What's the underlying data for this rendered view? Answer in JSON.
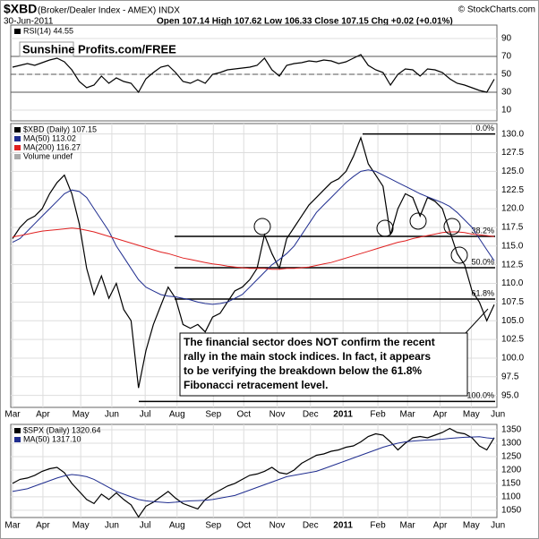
{
  "header": {
    "symbol": "$XBD",
    "title": "(Broker/Dealer Index - AMEX) INDX",
    "date": "30-Jun-2011",
    "quote": "Open 107.14 High 107.62 Low 106.33 Close 107.15 Chg +0.02 (+0.01%)",
    "source": "© StockCharts.com"
  },
  "chart_data": [
    {
      "type": "line",
      "watermark": [
        "Sunshine",
        "Profits.com/FREE"
      ],
      "x": [
        0,
        1,
        2,
        3,
        4,
        5,
        6,
        7,
        8,
        9,
        10,
        11,
        12,
        13,
        14,
        15,
        16,
        17,
        18,
        19,
        20,
        21,
        22,
        23,
        24,
        25,
        26,
        27,
        28,
        29,
        30,
        31,
        32,
        33,
        34,
        35,
        36,
        37,
        38,
        39,
        40,
        41,
        42,
        43,
        44,
        45,
        46,
        47,
        48,
        49,
        50,
        51,
        52,
        53,
        54,
        55,
        56,
        57,
        58,
        59,
        60,
        61,
        62,
        63,
        64,
        65
      ],
      "xlim": [
        0,
        65
      ],
      "ylim": [
        0,
        100
      ],
      "yticks": [
        10,
        30,
        50,
        70,
        90
      ],
      "reference_lines": [
        30,
        50,
        70
      ],
      "grid": true,
      "series": [
        {
          "name": "RSI(14) 44.55",
          "color": "#000000",
          "values": [
            58,
            60,
            62,
            60,
            63,
            66,
            68,
            64,
            55,
            42,
            35,
            38,
            48,
            40,
            46,
            42,
            40,
            30,
            45,
            52,
            58,
            60,
            52,
            42,
            40,
            44,
            40,
            50,
            52,
            55,
            56,
            57,
            58,
            60,
            68,
            55,
            48,
            60,
            62,
            63,
            65,
            64,
            66,
            65,
            62,
            64,
            68,
            72,
            60,
            55,
            52,
            38,
            50,
            56,
            55,
            48,
            56,
            55,
            52,
            45,
            40,
            38,
            35,
            32,
            30,
            44.55
          ]
        }
      ]
    },
    {
      "type": "line",
      "x": [
        0,
        1,
        2,
        3,
        4,
        5,
        6,
        7,
        8,
        9,
        10,
        11,
        12,
        13,
        14,
        15,
        16,
        17,
        18,
        19,
        20,
        21,
        22,
        23,
        24,
        25,
        26,
        27,
        28,
        29,
        30,
        31,
        32,
        33,
        34,
        35,
        36,
        37,
        38,
        39,
        40,
        41,
        42,
        43,
        44,
        45,
        46,
        47,
        48,
        49,
        50,
        51,
        52,
        53,
        54,
        55,
        56,
        57,
        58,
        59,
        60,
        61,
        62,
        63,
        64,
        65
      ],
      "xlim": [
        0,
        65
      ],
      "xticks": [
        {
          "value": 0,
          "label": "Mar"
        },
        {
          "value": 4.1,
          "label": "Apr"
        },
        {
          "value": 9.2,
          "label": "May"
        },
        {
          "value": 13.4,
          "label": "Jun"
        },
        {
          "value": 17.9,
          "label": "Jul"
        },
        {
          "value": 22.2,
          "label": "Aug"
        },
        {
          "value": 27.1,
          "label": "Sep"
        },
        {
          "value": 31.2,
          "label": "Oct"
        },
        {
          "value": 35.7,
          "label": "Nov"
        },
        {
          "value": 40.2,
          "label": "Dec"
        },
        {
          "value": 44.6,
          "label": "2011"
        },
        {
          "value": 49.3,
          "label": "Feb"
        },
        {
          "value": 53.3,
          "label": "Mar"
        },
        {
          "value": 57.7,
          "label": "Apr"
        },
        {
          "value": 61.9,
          "label": "May"
        },
        {
          "value": 65.5,
          "label": "Jun"
        }
      ],
      "ylim": [
        93.4,
        131.4
      ],
      "yticks": [
        {
          "value": 95,
          "label": "95.0"
        },
        {
          "value": 97.5,
          "label": "97.5"
        },
        {
          "value": 100,
          "label": "100.0"
        },
        {
          "value": 102.5,
          "label": "102.5"
        },
        {
          "value": 105,
          "label": "105.0"
        },
        {
          "value": 107.5,
          "label": "107.5"
        },
        {
          "value": 110,
          "label": "110.0"
        },
        {
          "value": 112.5,
          "label": "112.5"
        },
        {
          "value": 115,
          "label": "115.0"
        },
        {
          "value": 117.5,
          "label": "117.5"
        },
        {
          "value": 120,
          "label": "120.0"
        },
        {
          "value": 122.5,
          "label": "122.5"
        },
        {
          "value": 125,
          "label": "125.0"
        },
        {
          "value": 127.5,
          "label": "127.5"
        },
        {
          "value": 130,
          "label": "130.0"
        }
      ],
      "grid": true,
      "legend_extra": "Volume undef",
      "series": [
        {
          "name": "$XBD (Daily) 107.15",
          "color": "#000000",
          "values": [
            116,
            117.5,
            118.5,
            119,
            120,
            122,
            123.5,
            124.5,
            122,
            118,
            112,
            108.5,
            111,
            108,
            110,
            106.5,
            105,
            96,
            101,
            104.5,
            107,
            109.5,
            108,
            104.5,
            104,
            104.5,
            103.5,
            105.5,
            106,
            107.5,
            109,
            109.5,
            110.5,
            112,
            116.5,
            114,
            112,
            116,
            117.5,
            119,
            120.5,
            121.5,
            122.5,
            123.5,
            124,
            125,
            127,
            129.5,
            126,
            124.5,
            123,
            116.5,
            120,
            122,
            121.5,
            119,
            121.5,
            121,
            120,
            117,
            114,
            112.5,
            109,
            107.5,
            105,
            107.15
          ]
        },
        {
          "name": "MA(50) 113.02",
          "color": "#1f2d8f",
          "values": [
            115.5,
            116,
            117,
            118,
            119,
            120,
            121,
            122,
            122.5,
            122.3,
            121.5,
            120,
            118.5,
            117,
            115,
            113.5,
            112,
            110.5,
            109.5,
            109,
            108.5,
            108.3,
            108.2,
            108,
            107.8,
            107.5,
            107.3,
            107.2,
            107.3,
            107.5,
            108,
            108.5,
            109.5,
            110.5,
            111.5,
            112.5,
            113.2,
            114,
            115,
            116.5,
            118,
            119.5,
            120.5,
            121.5,
            122.5,
            123.5,
            124.3,
            125,
            125.2,
            125,
            124.5,
            124,
            123.5,
            123,
            122.5,
            122,
            121.6,
            121.2,
            120.8,
            120.3,
            119.5,
            118.5,
            117.5,
            116,
            114.5,
            113.02
          ]
        },
        {
          "name": "MA(200) 116.27",
          "color": "#e02020",
          "values": [
            116.2,
            116.4,
            116.6,
            116.8,
            117,
            117.1,
            117.2,
            117.3,
            117.4,
            117.3,
            117.1,
            116.9,
            116.6,
            116.3,
            116,
            115.7,
            115.4,
            115.1,
            114.8,
            114.5,
            114.2,
            114,
            113.7,
            113.4,
            113.2,
            113,
            112.8,
            112.6,
            112.5,
            112.3,
            112.2,
            112.1,
            112,
            112,
            112,
            111.9,
            111.9,
            112,
            112,
            112.1,
            112.2,
            112.4,
            112.6,
            112.8,
            113.1,
            113.4,
            113.7,
            114,
            114.3,
            114.6,
            114.9,
            115.2,
            115.5,
            115.7,
            116,
            116.2,
            116.4,
            116.6,
            116.8,
            116.9,
            116.9,
            116.8,
            116.6,
            116.5,
            116.4,
            116.27
          ]
        }
      ],
      "fibonacci": [
        {
          "label": "0.0%",
          "value": 130
        },
        {
          "label": "38.2%",
          "value": 116.3
        },
        {
          "label": "50.0%",
          "value": 112.1
        },
        {
          "label": "61.8%",
          "value": 107.9
        },
        {
          "label": "100.0%",
          "value": 94.2
        }
      ],
      "annotation": [
        "The financial sector does NOT confirm the recent",
        "rally in the main stock indices. In fact, it appears",
        "to be verifying the breakdown below the 61.8%",
        "Fibonacci retracement level."
      ]
    },
    {
      "type": "line",
      "x": [
        0,
        1,
        2,
        3,
        4,
        5,
        6,
        7,
        8,
        9,
        10,
        11,
        12,
        13,
        14,
        15,
        16,
        17,
        18,
        19,
        20,
        21,
        22,
        23,
        24,
        25,
        26,
        27,
        28,
        29,
        30,
        31,
        32,
        33,
        34,
        35,
        36,
        37,
        38,
        39,
        40,
        41,
        42,
        43,
        44,
        45,
        46,
        47,
        48,
        49,
        50,
        51,
        52,
        53,
        54,
        55,
        56,
        57,
        58,
        59,
        60,
        61,
        62,
        63,
        64,
        65
      ],
      "xlim": [
        0,
        65
      ],
      "xticks": [
        {
          "value": 0,
          "label": "Mar"
        },
        {
          "value": 4.1,
          "label": "Apr"
        },
        {
          "value": 9.2,
          "label": "May"
        },
        {
          "value": 13.4,
          "label": "Jun"
        },
        {
          "value": 17.9,
          "label": "Jul"
        },
        {
          "value": 22.2,
          "label": "Aug"
        },
        {
          "value": 27.1,
          "label": "Sep"
        },
        {
          "value": 31.2,
          "label": "Oct"
        },
        {
          "value": 35.7,
          "label": "Nov"
        },
        {
          "value": 40.2,
          "label": "Dec"
        },
        {
          "value": 44.6,
          "label": "2011"
        },
        {
          "value": 49.3,
          "label": "Feb"
        },
        {
          "value": 53.3,
          "label": "Mar"
        },
        {
          "value": 57.7,
          "label": "Apr"
        },
        {
          "value": 61.9,
          "label": "May"
        },
        {
          "value": 65.5,
          "label": "Jun"
        }
      ],
      "ylim": [
        1023,
        1370
      ],
      "yticks": [
        1050,
        1100,
        1150,
        1200,
        1250,
        1300,
        1350
      ],
      "grid": true,
      "series": [
        {
          "name": "$SPX (Daily) 1320.64",
          "color": "#000000",
          "values": [
            1150,
            1165,
            1170,
            1180,
            1195,
            1205,
            1210,
            1190,
            1150,
            1120,
            1090,
            1075,
            1110,
            1090,
            1115,
            1090,
            1070,
            1025,
            1065,
            1080,
            1100,
            1120,
            1095,
            1075,
            1065,
            1055,
            1090,
            1110,
            1125,
            1140,
            1150,
            1165,
            1180,
            1185,
            1195,
            1210,
            1190,
            1185,
            1200,
            1225,
            1240,
            1255,
            1260,
            1270,
            1275,
            1285,
            1290,
            1305,
            1325,
            1335,
            1330,
            1305,
            1275,
            1300,
            1320,
            1325,
            1320,
            1330,
            1340,
            1355,
            1340,
            1335,
            1320,
            1290,
            1275,
            1320.64
          ]
        },
        {
          "name": "MA(50) 1317.10",
          "color": "#1f2d8f",
          "values": [
            1120,
            1125,
            1130,
            1140,
            1150,
            1160,
            1170,
            1178,
            1183,
            1180,
            1175,
            1165,
            1150,
            1135,
            1120,
            1110,
            1100,
            1090,
            1085,
            1082,
            1080,
            1078,
            1080,
            1083,
            1085,
            1086,
            1087,
            1090,
            1095,
            1100,
            1105,
            1115,
            1125,
            1135,
            1145,
            1155,
            1165,
            1175,
            1180,
            1185,
            1190,
            1195,
            1205,
            1215,
            1225,
            1235,
            1245,
            1255,
            1265,
            1275,
            1285,
            1293,
            1300,
            1305,
            1308,
            1310,
            1312,
            1313,
            1315,
            1318,
            1320,
            1322,
            1323,
            1324,
            1320,
            1317.1
          ]
        }
      ]
    }
  ]
}
